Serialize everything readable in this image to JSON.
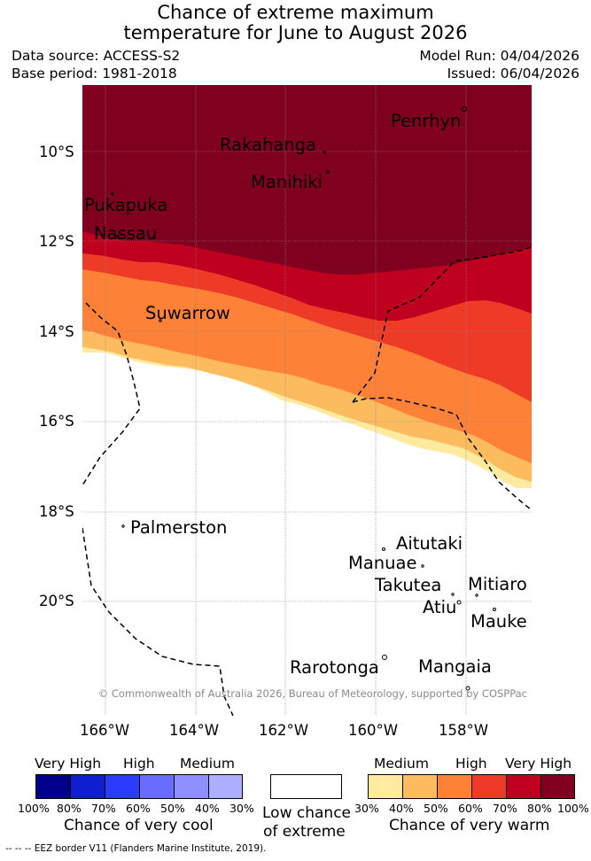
{
  "title": {
    "line1": "Chance of extreme maximum",
    "line2": "temperature for June to August 2026"
  },
  "meta": {
    "data_source": "Data source: ACCESS-S2",
    "base_period": "Base period: 1981-2018",
    "model_run": "Model Run: 04/04/2026",
    "issued": "Issued: 06/04/2026"
  },
  "axes": {
    "lat_labels": [
      "10°S",
      "12°S",
      "14°S",
      "16°S",
      "18°S",
      "20°S"
    ],
    "lon_labels": [
      "166°W",
      "164°W",
      "162°W",
      "160°W",
      "158°W"
    ]
  },
  "places": {
    "penrhyn": "Penrhyn",
    "rakahanga": "Rakahanga",
    "manihiki": "Manihiki",
    "pukapuka": "Pukapuka",
    "nassau": "Nassau",
    "suwarrow": "Suwarrow",
    "palmerston": "Palmerston",
    "aitutaki": "Aitutaki",
    "manuae": "Manuae",
    "takutea": "Takutea",
    "mitiaro": "Mitiaro",
    "atiu": "Atiu",
    "mauke": "Mauke",
    "rarotonga": "Rarotonga",
    "mangaia": "Mangaia"
  },
  "copyright": "© Commonwealth of Australia 2026, Bureau of Meteorology, supported by COSPPac",
  "legend": {
    "cool": {
      "labels": [
        "Very High",
        "High",
        "Medium"
      ],
      "ticks": [
        "100%",
        "80%",
        "70%",
        "60%",
        "50%",
        "40%",
        "30%"
      ],
      "colors": [
        "#00008b",
        "#0f1fd0",
        "#2b3cff",
        "#6a6bff",
        "#8f8fff",
        "#aeaeff"
      ],
      "caption": "Chance of very cool"
    },
    "neutral": {
      "caption_line1": "Low chance",
      "caption_line2": "of extreme",
      "color": "#ffffff"
    },
    "warm": {
      "labels": [
        "Medium",
        "High",
        "Very High"
      ],
      "ticks": [
        "30%",
        "40%",
        "50%",
        "60%",
        "70%",
        "80%",
        "100%"
      ],
      "colors": [
        "#ffeaa0",
        "#fdbb5f",
        "#fd8136",
        "#ee3b28",
        "#c0001f",
        "#800020"
      ],
      "caption": "Chance of very warm"
    }
  },
  "footnote": "--  --  -- EEZ border V11 (Flanders Marine Institute, 2019)."
}
